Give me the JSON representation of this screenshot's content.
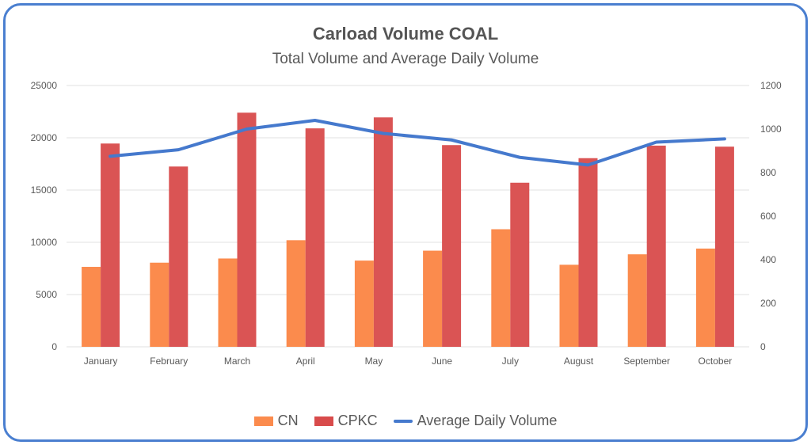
{
  "chart_data": {
    "type": "bar",
    "title": "Carload Volume COAL",
    "subtitle": "Total Volume and Average Daily Volume",
    "categories": [
      "January",
      "February",
      "March",
      "April",
      "May",
      "June",
      "July",
      "August",
      "September",
      "October"
    ],
    "series": [
      {
        "name": "CN",
        "type": "bar",
        "axis": "left",
        "color": "#fb8b4d",
        "values": [
          7650,
          8050,
          8450,
          10200,
          8250,
          9200,
          11250,
          7850,
          8850,
          9400
        ]
      },
      {
        "name": "CPKC",
        "type": "bar",
        "axis": "left",
        "color": "#d84b4b",
        "values": [
          19450,
          17250,
          22400,
          20900,
          21950,
          19300,
          15700,
          18050,
          19250,
          19150
        ]
      },
      {
        "name": "Average Daily Volume",
        "type": "line",
        "axis": "right",
        "color": "#4579cd",
        "values": [
          875,
          905,
          1000,
          1040,
          980,
          950,
          870,
          835,
          940,
          955
        ]
      }
    ],
    "y_left": {
      "min": 0,
      "max": 25000,
      "ticks": [
        "0",
        "5000",
        "10000",
        "15000",
        "20000",
        "25000"
      ]
    },
    "y_right": {
      "min": 0,
      "max": 1200,
      "ticks": [
        "0",
        "200",
        "400",
        "600",
        "800",
        "1000",
        "1200"
      ]
    },
    "grid": true,
    "legend_position": "bottom"
  }
}
